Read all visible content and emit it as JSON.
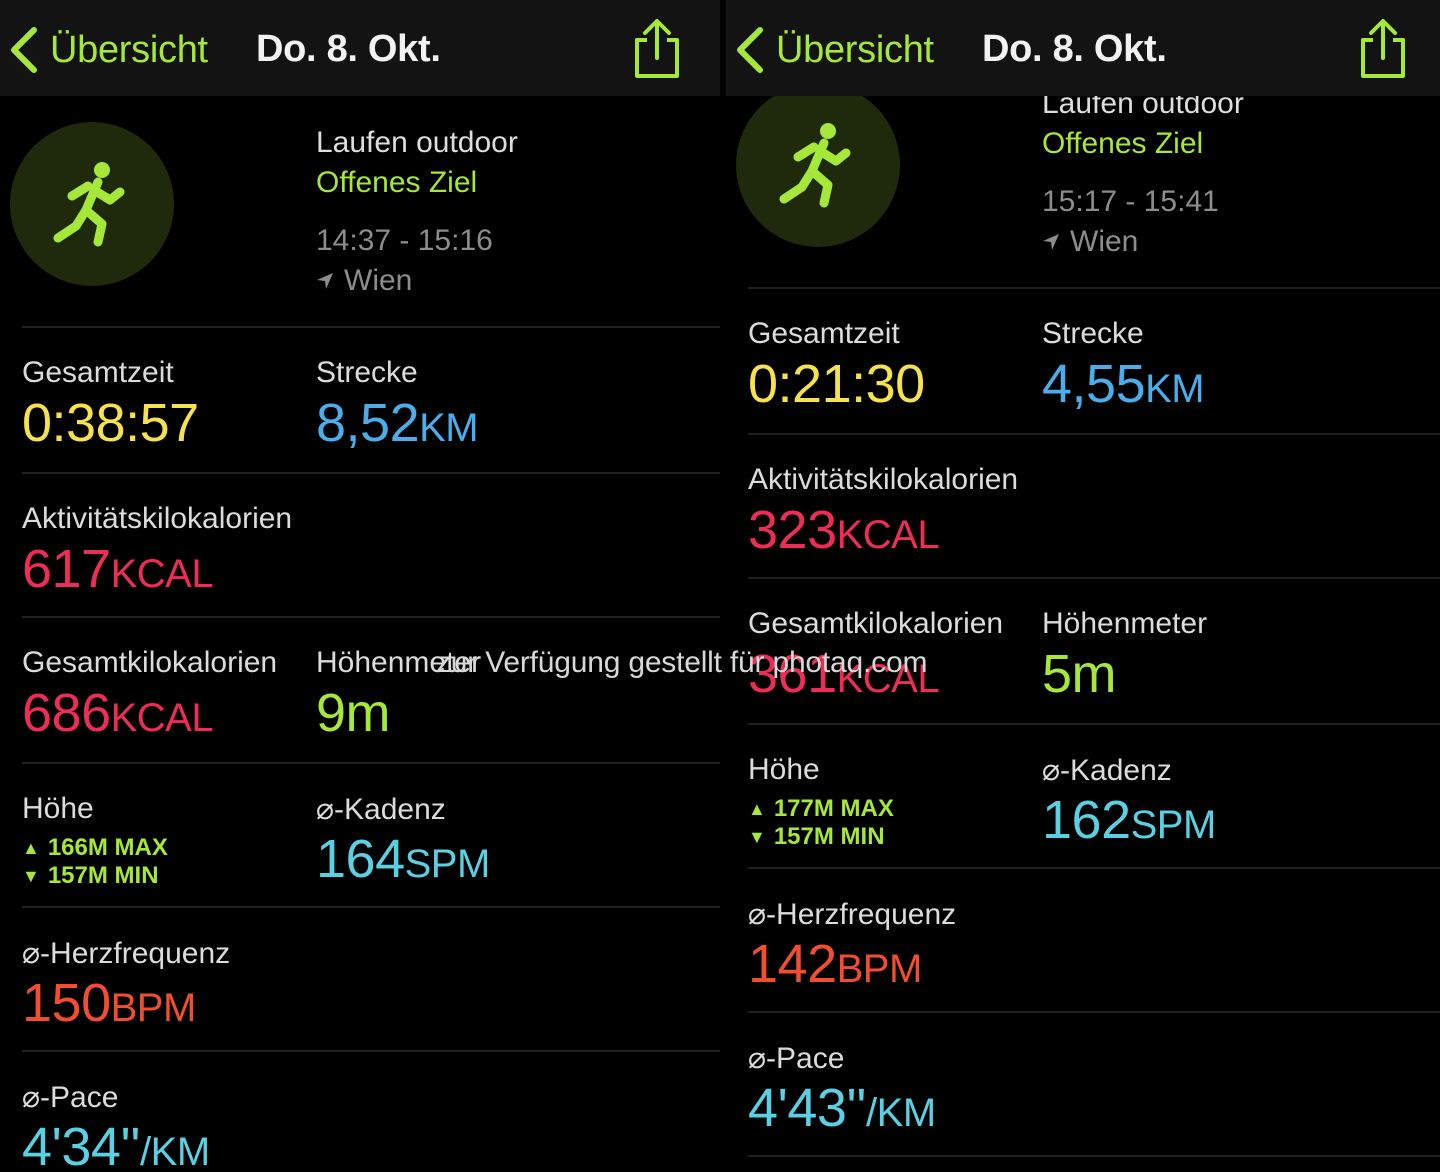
{
  "panels": [
    {
      "nav": {
        "back_label": "Übersicht",
        "title": "Do. 8. Okt."
      },
      "workout": {
        "type": "Laufen outdoor",
        "goal": "Offenes Ziel",
        "time": "14:37 - 15:16",
        "location": "Wien"
      },
      "metrics": {
        "total_time": {
          "label": "Gesamtzeit",
          "value": "0:38:57"
        },
        "distance": {
          "label": "Strecke",
          "value": "8,52",
          "unit": "KM"
        },
        "active_kcal": {
          "label": "Aktivitätskilokalorien",
          "value": "617",
          "unit": "KCAL"
        },
        "total_kcal": {
          "label": "Gesamtkilokalorien",
          "value": "686",
          "unit": "KCAL"
        },
        "elevation_gain": {
          "label": "Höhenmeter",
          "value": "9m"
        },
        "elevation": {
          "label": "Höhe",
          "max": "166M MAX",
          "min": "157M MIN"
        },
        "cadence": {
          "label": "⌀-Kadenz",
          "value": "164",
          "unit": "SPM"
        },
        "heart_rate": {
          "label": "⌀-Herzfrequenz",
          "value": "150",
          "unit": "BPM"
        },
        "pace": {
          "label": "⌀-Pace",
          "value": "4'34''",
          "unit": "/KM"
        }
      }
    },
    {
      "nav": {
        "back_label": "Übersicht",
        "title": "Do. 8. Okt."
      },
      "workout": {
        "type": "Laufen outdoor",
        "goal": "Offenes Ziel",
        "time": "15:17 - 15:41",
        "location": "Wien"
      },
      "metrics": {
        "total_time": {
          "label": "Gesamtzeit",
          "value": "0:21:30"
        },
        "distance": {
          "label": "Strecke",
          "value": "4,55",
          "unit": "KM"
        },
        "active_kcal": {
          "label": "Aktivitätskilokalorien",
          "value": "323",
          "unit": "KCAL"
        },
        "total_kcal": {
          "label": "Gesamtkilokalorien",
          "value": "361",
          "unit": "KCAL"
        },
        "elevation_gain": {
          "label": "Höhenmeter",
          "value": "5m"
        },
        "elevation": {
          "label": "Höhe",
          "max": "177M MAX",
          "min": "157M MIN"
        },
        "cadence": {
          "label": "⌀-Kadenz",
          "value": "162",
          "unit": "SPM"
        },
        "heart_rate": {
          "label": "⌀-Herzfrequenz",
          "value": "142",
          "unit": "BPM"
        },
        "pace": {
          "label": "⌀-Pace",
          "value": "4'43''",
          "unit": "/KM"
        }
      }
    }
  ],
  "watermark": "zur Verfügung gestellt für photaq.com",
  "icons": {
    "back": "chevron-left-icon",
    "share": "share-icon",
    "workout": "running-figure-icon",
    "location": "location-arrow-icon"
  },
  "colors": {
    "accent_green": "#a5e83a",
    "time_yellow": "#f6e24a",
    "distance_blue": "#4aaeec",
    "kcal_red": "#ec2e56",
    "cadence_teal": "#5ad0e2",
    "heart_orange": "#f14e2f"
  }
}
